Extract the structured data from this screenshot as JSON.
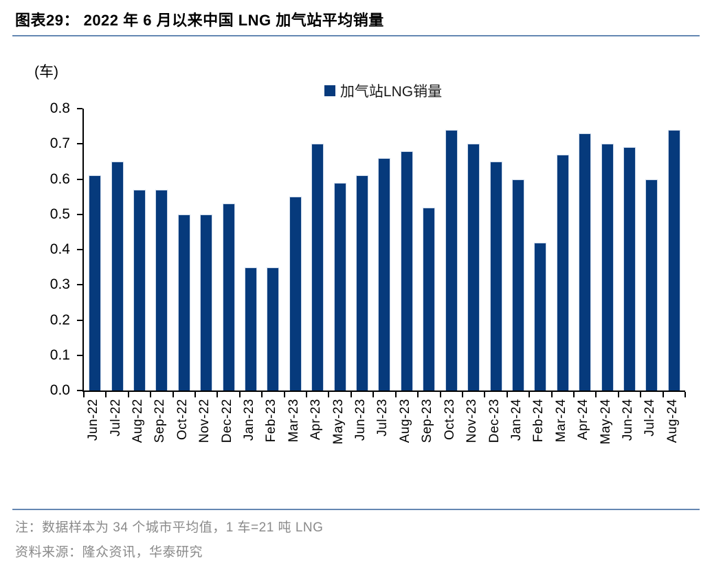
{
  "header": {
    "title": "图表29： 2022 年 6 月以来中国 LNG 加气站平均销量"
  },
  "chart_data": {
    "type": "bar",
    "title": "图表29： 2022 年 6 月以来中国 LNG 加气站平均销量",
    "unit_label": "(车)",
    "legend": "加气站LNG销量",
    "legend_position": "top-center",
    "grid": false,
    "categories": [
      "Jun-22",
      "Jul-22",
      "Aug-22",
      "Sep-22",
      "Oct-22",
      "Nov-22",
      "Dec-22",
      "Jan-23",
      "Feb-23",
      "Mar-23",
      "Apr-23",
      "May-23",
      "Jun-23",
      "Jul-23",
      "Aug-23",
      "Sep-23",
      "Oct-23",
      "Nov-23",
      "Dec-23",
      "Jan-24",
      "Feb-24",
      "Mar-24",
      "Apr-24",
      "May-24",
      "Jun-24",
      "Jul-24",
      "Aug-24"
    ],
    "values": [
      0.61,
      0.65,
      0.57,
      0.57,
      0.5,
      0.5,
      0.53,
      0.35,
      0.35,
      0.55,
      0.7,
      0.59,
      0.61,
      0.66,
      0.68,
      0.52,
      0.74,
      0.7,
      0.65,
      0.6,
      0.42,
      0.67,
      0.73,
      0.7,
      0.69,
      0.6,
      0.74
    ],
    "ylim": [
      0,
      0.8
    ],
    "ytick_step": 0.1,
    "bar_color": "#063a7c"
  },
  "footer": {
    "note": "注：数据样本为 34 个城市平均值，1 车=21 吨 LNG",
    "source": "资料来源：隆众资讯，华泰研究"
  },
  "colors": {
    "bar": "#063a7c",
    "rule": "#6487b2",
    "note_text": "#8a8a8a"
  }
}
